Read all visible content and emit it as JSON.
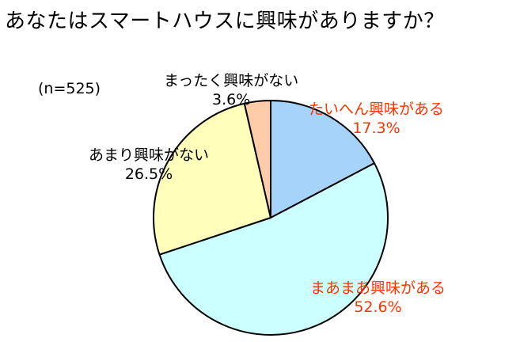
{
  "title": "あなたはスマートハウスに興味がありますか？",
  "sample_size": "(n=525)",
  "chart_data": {
    "type": "pie",
    "title": "あなたはスマートハウスに興味がありますか？",
    "slices": [
      {
        "label": "たいへん興味がある",
        "value": 17.3,
        "value_text": "17.3%",
        "color": "#a6d3fa",
        "label_color": "#ff3300"
      },
      {
        "label": "まあまあ興味がある",
        "value": 52.6,
        "value_text": "52.6%",
        "color": "#ccffff",
        "label_color": "#ff3300"
      },
      {
        "label": "あまり興味がない",
        "value": 26.5,
        "value_text": "26.5%",
        "color": "#ffffbb",
        "label_color": "#000000"
      },
      {
        "label": "まったく興味がない",
        "value": 3.6,
        "value_text": "3.6%",
        "color": "#ffccaa",
        "label_color": "#000000"
      }
    ]
  }
}
